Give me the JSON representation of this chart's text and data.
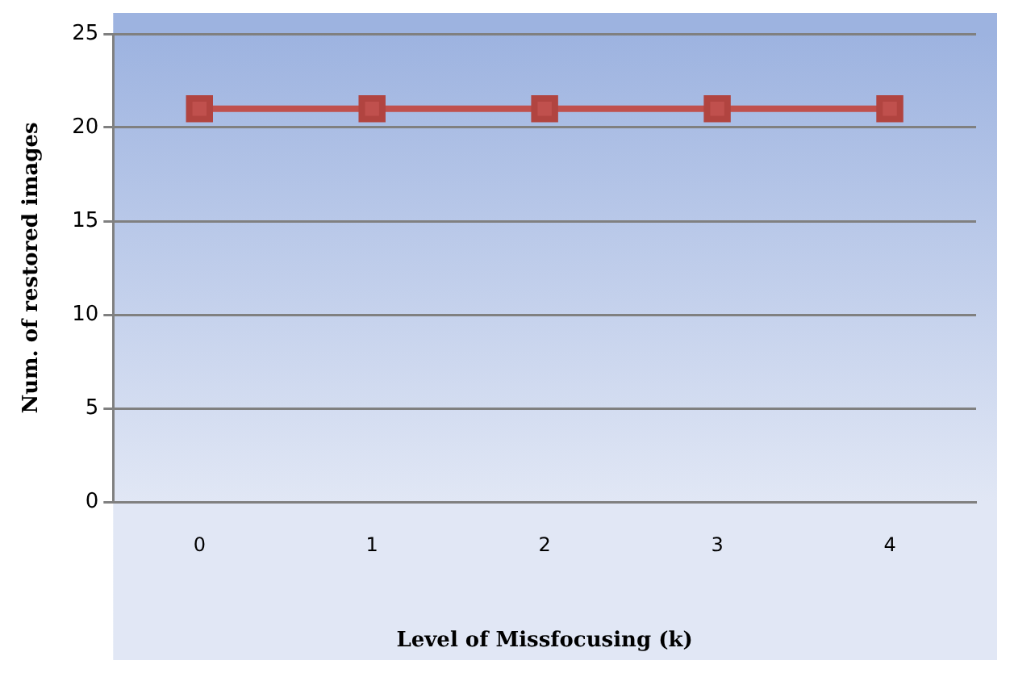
{
  "chart_data": {
    "type": "line",
    "xlabel": "Level of Missfocusing (k)",
    "ylabel": "Num. of restored images",
    "categories": [
      "0",
      "1",
      "2",
      "3",
      "4"
    ],
    "series": [
      {
        "color": "#c0504d",
        "values": [
          21,
          21,
          21,
          21,
          21
        ]
      }
    ],
    "ylim": [
      0,
      25
    ],
    "yticks": [
      0,
      5,
      10,
      15,
      20,
      25
    ],
    "grid": "y",
    "legend": false,
    "marker": "square",
    "line_style": "solid"
  }
}
